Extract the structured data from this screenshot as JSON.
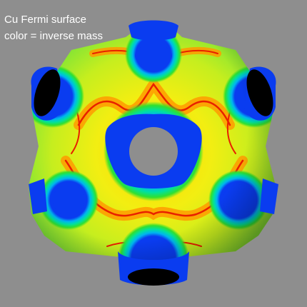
{
  "caption": {
    "line1": "Cu Fermi surface",
    "line2": "color = inverse mass"
  },
  "colormap": {
    "name": "jet",
    "stops": [
      "#0a3cf0",
      "#00b4f0",
      "#00e0a0",
      "#30e030",
      "#d8ec10",
      "#ffc400",
      "#ff7a00",
      "#e82000"
    ],
    "neck_cap": "#000000",
    "background": "#8e8e8e"
  }
}
